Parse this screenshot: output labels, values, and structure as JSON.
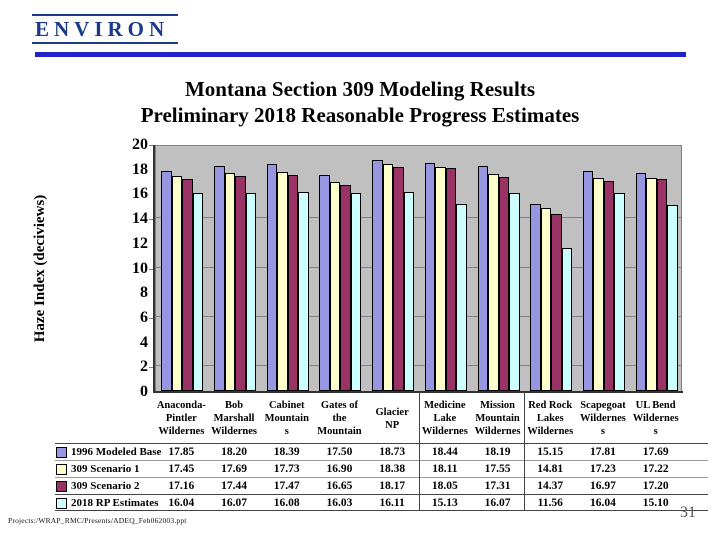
{
  "logo": {
    "text": "ENVIRON"
  },
  "theme": {
    "logo_navy": "#1b3a8c",
    "rule_blue": "#2323cc",
    "axis_color": "#333333",
    "gridline_color": "#808080",
    "table_line_dark": "#444444",
    "table_line_light": "#999999",
    "page_number_gray": "#555555"
  },
  "slide": {
    "title_line1": "Montana Section 309 Modeling Results",
    "title_line2": "Preliminary 2018 Reasonable Progress Estimates",
    "footer": "Projects:/WRAP_RMC/Presents/ADEQ_Feb062003.ppt",
    "page_number": "31"
  },
  "chart_data": {
    "type": "bar",
    "title": "",
    "xlabel": "",
    "ylabel": "Haze Index (deciviews)",
    "ylim": [
      0,
      20
    ],
    "ytick_step": 2,
    "gridlines_at": [
      2,
      6,
      10,
      14
    ],
    "grid": true,
    "plot_bg": "#c0c0c0",
    "legend_position": "data-table-left",
    "table_dividers_after": [
      5,
      7
    ],
    "categories": [
      [
        "Anaconda-",
        "Pintler",
        "Wildernes"
      ],
      [
        "Bob",
        "Marshall",
        "Wildernes"
      ],
      [
        "Cabinet",
        "Mountain",
        "s"
      ],
      [
        "Gates of",
        "the",
        "Mountain"
      ],
      [
        "Glacier",
        "NP"
      ],
      [
        "Medicine",
        "Lake",
        "Wildernes"
      ],
      [
        "Mission",
        "Mountain",
        "Wildernes"
      ],
      [
        "Red Rock",
        "Lakes",
        "Wildernes"
      ],
      [
        "Scapegoat",
        "Wildernes",
        "s"
      ],
      [
        "UL Bend",
        "Wildernes",
        "s"
      ]
    ],
    "series": [
      {
        "name": "1996 Modeled Base",
        "color": "#9796e0",
        "values": [
          17.85,
          18.2,
          18.39,
          17.5,
          18.73,
          18.44,
          18.19,
          15.15,
          17.81,
          17.69
        ]
      },
      {
        "name": "309 Scenario 1",
        "color": "#ffffcc",
        "values": [
          17.45,
          17.69,
          17.73,
          16.9,
          18.38,
          18.11,
          17.55,
          14.81,
          17.23,
          17.22
        ]
      },
      {
        "name": "309 Scenario 2",
        "color": "#993366",
        "values": [
          17.16,
          17.44,
          17.47,
          16.65,
          18.17,
          18.05,
          17.31,
          14.37,
          16.97,
          17.2
        ]
      },
      {
        "name": "2018 RP Estimates",
        "color": "#ccffff",
        "values": [
          16.04,
          16.07,
          16.08,
          16.03,
          16.11,
          15.13,
          16.07,
          11.56,
          16.04,
          15.1
        ]
      }
    ]
  }
}
